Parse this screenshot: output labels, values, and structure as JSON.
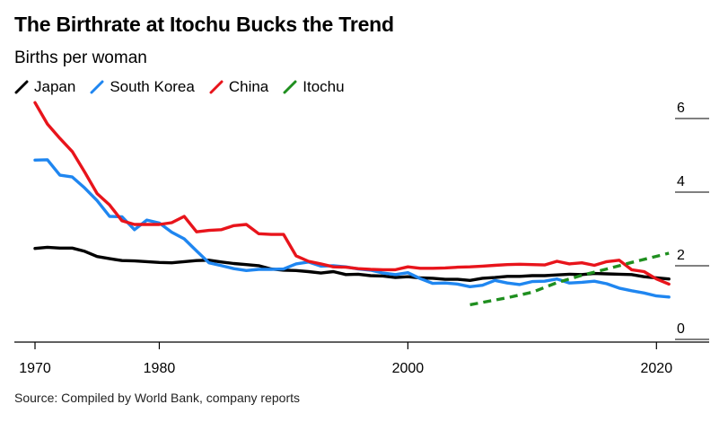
{
  "title": "The Birthrate at Itochu Bucks the Trend",
  "subtitle": "Births per woman",
  "source": "Source: Compiled by World Bank, company reports",
  "chart_data": {
    "type": "line",
    "xlim": [
      1970,
      2022
    ],
    "ylim": [
      0,
      6
    ],
    "grid": false,
    "legend_placement": "top-left",
    "x_ticks": [
      1970,
      1980,
      2000,
      2020
    ],
    "y_ticks": [
      0,
      2,
      4,
      6
    ],
    "series": [
      {
        "name": "Japan",
        "color": "#000000",
        "dashed": false,
        "x": [
          1970,
          1971,
          1972,
          1973,
          1974,
          1975,
          1976,
          1977,
          1978,
          1979,
          1980,
          1981,
          1982,
          1983,
          1984,
          1985,
          1986,
          1987,
          1988,
          1989,
          1990,
          1991,
          1992,
          1993,
          1994,
          1995,
          1996,
          1997,
          1998,
          1999,
          2000,
          2001,
          2002,
          2003,
          2004,
          2005,
          2006,
          2007,
          2008,
          2009,
          2010,
          2011,
          2012,
          2013,
          2014,
          2015,
          2016,
          2017,
          2018,
          2019,
          2020,
          2021
        ],
        "y": [
          2.13,
          2.16,
          2.14,
          2.14,
          2.05,
          1.91,
          1.85,
          1.8,
          1.79,
          1.77,
          1.75,
          1.74,
          1.77,
          1.8,
          1.81,
          1.76,
          1.72,
          1.69,
          1.66,
          1.57,
          1.54,
          1.53,
          1.5,
          1.46,
          1.5,
          1.42,
          1.43,
          1.39,
          1.38,
          1.34,
          1.36,
          1.33,
          1.32,
          1.29,
          1.29,
          1.26,
          1.32,
          1.34,
          1.37,
          1.37,
          1.39,
          1.39,
          1.41,
          1.43,
          1.42,
          1.45,
          1.44,
          1.43,
          1.42,
          1.36,
          1.33,
          1.3
        ]
      },
      {
        "name": "South Korea",
        "color": "#1f86f0",
        "dashed": false,
        "x": [
          1970,
          1971,
          1972,
          1973,
          1974,
          1975,
          1976,
          1977,
          1978,
          1979,
          1980,
          1981,
          1982,
          1983,
          1984,
          1985,
          1986,
          1987,
          1988,
          1989,
          1990,
          1991,
          1992,
          1993,
          1994,
          1995,
          1996,
          1997,
          1998,
          1999,
          2000,
          2001,
          2002,
          2003,
          2004,
          2005,
          2006,
          2007,
          2008,
          2009,
          2010,
          2011,
          2012,
          2013,
          2014,
          2015,
          2016,
          2017,
          2018,
          2019,
          2020,
          2021
        ],
        "y": [
          4.53,
          4.54,
          4.12,
          4.07,
          3.77,
          3.43,
          3.0,
          2.99,
          2.64,
          2.9,
          2.82,
          2.57,
          2.39,
          2.06,
          1.74,
          1.66,
          1.58,
          1.53,
          1.56,
          1.56,
          1.57,
          1.71,
          1.76,
          1.65,
          1.66,
          1.63,
          1.57,
          1.54,
          1.46,
          1.42,
          1.47,
          1.31,
          1.18,
          1.19,
          1.16,
          1.09,
          1.13,
          1.26,
          1.19,
          1.15,
          1.23,
          1.24,
          1.3,
          1.19,
          1.21,
          1.24,
          1.17,
          1.05,
          0.98,
          0.92,
          0.84,
          0.81
        ]
      },
      {
        "name": "China",
        "color": "#e8141b",
        "dashed": false,
        "x": [
          1970,
          1971,
          1972,
          1973,
          1974,
          1975,
          1976,
          1977,
          1978,
          1979,
          1980,
          1981,
          1982,
          1983,
          1984,
          1985,
          1986,
          1987,
          1988,
          1989,
          1990,
          1991,
          1992,
          1993,
          1994,
          1995,
          1996,
          1997,
          1998,
          1999,
          2000,
          2001,
          2002,
          2003,
          2004,
          2005,
          2006,
          2007,
          2008,
          2009,
          2010,
          2011,
          2012,
          2013,
          2014,
          2015,
          2016,
          2017,
          2018,
          2019,
          2020,
          2021
        ],
        "y": [
          6.09,
          5.51,
          5.12,
          4.76,
          4.2,
          3.62,
          3.31,
          2.88,
          2.78,
          2.78,
          2.78,
          2.83,
          3.0,
          2.58,
          2.62,
          2.64,
          2.75,
          2.78,
          2.53,
          2.51,
          2.51,
          1.93,
          1.78,
          1.71,
          1.63,
          1.62,
          1.58,
          1.56,
          1.55,
          1.55,
          1.63,
          1.59,
          1.59,
          1.6,
          1.62,
          1.63,
          1.65,
          1.67,
          1.69,
          1.7,
          1.69,
          1.68,
          1.78,
          1.71,
          1.74,
          1.67,
          1.77,
          1.81,
          1.55,
          1.5,
          1.3,
          1.16
        ]
      },
      {
        "name": "Itochu",
        "color": "#1f8f1f",
        "dashed": true,
        "x": [
          2005,
          2008,
          2010,
          2012,
          2014,
          2016,
          2018,
          2021
        ],
        "y": [
          0.6,
          0.79,
          0.94,
          1.2,
          1.4,
          1.57,
          1.75,
          2.0
        ]
      }
    ]
  }
}
